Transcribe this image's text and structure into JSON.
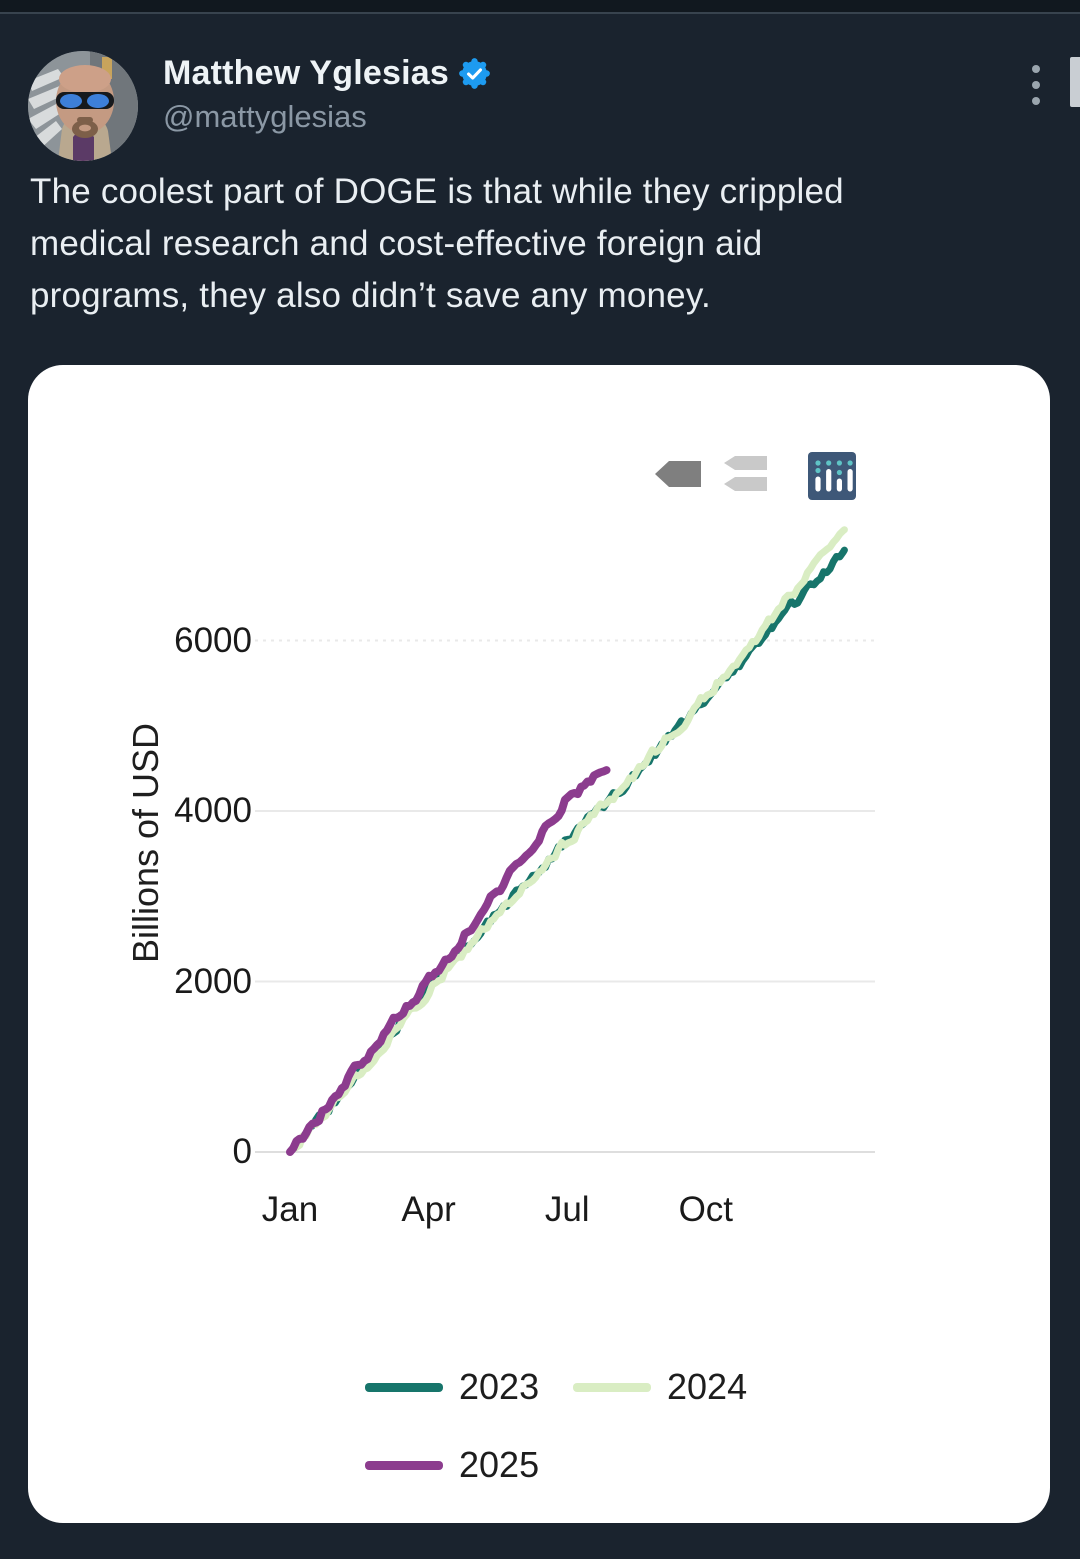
{
  "colors": {
    "page_bg": "#1a232e",
    "divider": "#38434e",
    "text_primary": "#e9eef2",
    "text_muted": "#8b98a5",
    "verified_blue": "#1d9bf0",
    "card_bg": "#ffffff",
    "gridline": "#e7e7e7",
    "axis_text": "#1a1a1a"
  },
  "header": {
    "author": {
      "name": "Matthew Yglesias",
      "handle": "@mattyglesias",
      "verified": true
    },
    "menu_icon": "kebab-vertical-icon",
    "scrollbar_visible": true
  },
  "tweet": {
    "lines": [
      "The coolest part of DOGE is that while they crippled",
      "medical research and cost-effective foreign aid",
      "programs, they also didn’t save any money."
    ]
  },
  "card_toolbar": {
    "icons": [
      {
        "name": "tag-icon",
        "color": "#7f7f7f"
      },
      {
        "name": "tags-stack-icon",
        "color": "#c9c9c9"
      },
      {
        "name": "bar-chart-logo-icon",
        "color": "#3e5878",
        "accent": "#5fc4c6"
      }
    ]
  },
  "chart_data": {
    "type": "line",
    "title": "",
    "xlabel": "",
    "ylabel": "Billions of USD",
    "grid": "horizontal",
    "legend_position": "bottom",
    "yticks": [
      0,
      2000,
      4000,
      6000
    ],
    "yticklabels": [
      "0",
      "2000",
      "4000",
      "6000"
    ],
    "ylim": [
      0,
      7450
    ],
    "xlim_months": [
      0,
      12.3
    ],
    "xticks_months": [
      0,
      3,
      6,
      9
    ],
    "xticklabels": [
      "Jan",
      "Apr",
      "Jul",
      "Oct"
    ],
    "series": [
      {
        "name": "2023",
        "color": "#17756b",
        "line_width": 7,
        "months": [
          0,
          1,
          2,
          3,
          4,
          5,
          6,
          7,
          8,
          9,
          10,
          11,
          12
        ],
        "values": [
          0,
          620,
          1280,
          1930,
          2530,
          3100,
          3650,
          4180,
          4730,
          5300,
          5890,
          6480,
          7060
        ]
      },
      {
        "name": "2024",
        "color": "#d9edc3",
        "line_width": 7,
        "months": [
          0,
          1,
          2,
          3,
          4,
          5,
          6,
          7,
          8,
          9,
          10,
          11,
          12
        ],
        "values": [
          0,
          600,
          1250,
          1900,
          2500,
          3080,
          3640,
          4180,
          4750,
          5350,
          5980,
          6640,
          7300
        ]
      },
      {
        "name": "2025",
        "color": "#8c3c8e",
        "line_width": 8,
        "months": [
          0,
          1,
          2,
          3,
          4,
          5,
          6,
          6.85
        ],
        "values": [
          0,
          680,
          1370,
          2000,
          2700,
          3420,
          4150,
          4480
        ]
      }
    ]
  }
}
